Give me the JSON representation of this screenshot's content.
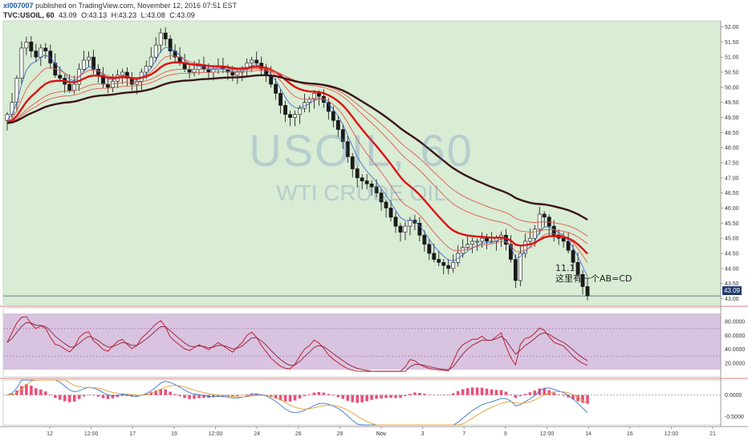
{
  "header": {
    "user": "xl007007",
    "published": "published on TradingView.com, November 12, 2016 07:51 EST",
    "symbol": "TVC:USOIL, 60",
    "o": "O:43.13",
    "h": "H:43.23",
    "l": "L:43.08",
    "c": "C:43.09",
    "last": "43.09"
  },
  "watermark": {
    "line1": "USOIL, 60",
    "line2": "WTI CRUDE OIL"
  },
  "annotation": {
    "line1": "11.12",
    "line2": "这里有一个AB=CD"
  },
  "colors": {
    "price_bg": "#d9ecd4",
    "rsi_bg": "#d8c4e0",
    "bull": "#ffffff",
    "bear": "#1a1a1a",
    "ma_thin": "#e05a50",
    "ma_thick": "#dd1111",
    "ma_long": "#3a1418",
    "ma_blue": "#3a5fcd",
    "rsi_line": "#c02030",
    "macd_line": "#3a78c8",
    "signal_line": "#e0a030",
    "hist": "#e8507a"
  },
  "chart_data": [
    {
      "type": "candlestick",
      "title": "USOIL, 60",
      "ylim": [
        42.8,
        52.2
      ],
      "ytick_labels": [
        "52.00",
        "51.50",
        "51.00",
        "50.50",
        "50.00",
        "49.50",
        "49.00",
        "48.50",
        "48.00",
        "47.50",
        "47.00",
        "46.50",
        "46.00",
        "45.50",
        "45.00",
        "44.50",
        "44.00",
        "43.50",
        "43.00"
      ],
      "xtick_labels": [
        "12",
        "12:00",
        "17",
        "19",
        "12:00",
        "24",
        "26",
        "28",
        "Nov",
        "3",
        "7",
        "9",
        "12:00",
        "14",
        "16",
        "12:00",
        "21"
      ],
      "closes": [
        49.1,
        49.5,
        50.3,
        51.3,
        51.5,
        51.2,
        51.0,
        51.3,
        51.2,
        50.8,
        50.4,
        50.3,
        50.1,
        49.9,
        50.1,
        50.6,
        50.9,
        51.0,
        50.6,
        50.4,
        50.1,
        50.0,
        50.2,
        50.4,
        50.5,
        50.3,
        50.1,
        50.2,
        50.5,
        50.7,
        51.0,
        51.4,
        51.8,
        51.6,
        51.2,
        51.0,
        50.8,
        50.6,
        50.5,
        50.6,
        50.7,
        50.6,
        50.5,
        50.6,
        50.7,
        50.6,
        50.5,
        50.4,
        50.5,
        50.6,
        50.8,
        50.9,
        50.8,
        50.6,
        50.4,
        50.1,
        49.8,
        49.4,
        49.1,
        49.0,
        49.1,
        49.3,
        49.5,
        49.6,
        49.8,
        49.7,
        49.5,
        49.2,
        48.9,
        48.6,
        48.2,
        47.7,
        47.3,
        47.0,
        46.9,
        46.8,
        46.7,
        46.5,
        46.2,
        46.0,
        45.7,
        45.4,
        45.2,
        45.4,
        45.6,
        45.5,
        45.1,
        44.8,
        44.5,
        44.3,
        44.2,
        44.1,
        44.0,
        44.2,
        44.5,
        44.7,
        44.8,
        44.9,
        44.9,
        45.0,
        44.9,
        44.9,
        45.0,
        45.1,
        44.8,
        44.3,
        43.6,
        44.5,
        44.9,
        45.0,
        45.3,
        45.8,
        45.7,
        45.4,
        45.1,
        45.0,
        44.9,
        44.6,
        44.2,
        43.8,
        43.4,
        43.09
      ],
      "rsi": {
        "ylim": [
          0,
          100
        ],
        "ytick_labels": [
          "80.0000",
          "60.0000",
          "40.0000",
          "20.0000"
        ],
        "levels": [
          70,
          30
        ]
      },
      "macd": {
        "ylim": [
          -0.7,
          0.35
        ],
        "ytick_labels": [
          "0.0000",
          "-0.5000"
        ]
      }
    }
  ]
}
